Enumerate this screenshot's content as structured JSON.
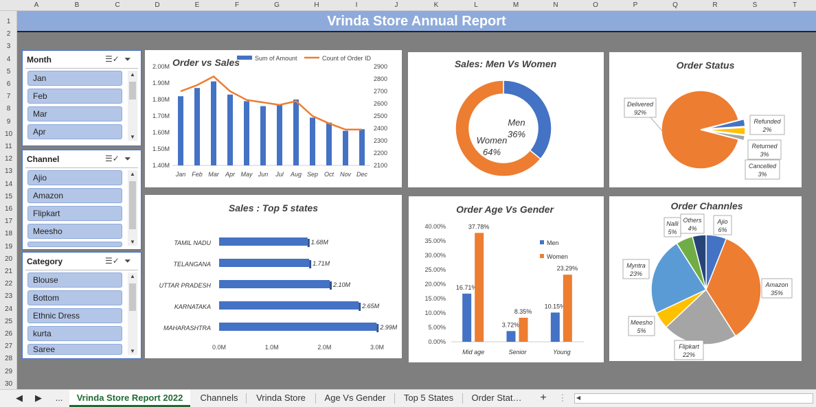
{
  "columns": [
    "A",
    "B",
    "C",
    "D",
    "E",
    "F",
    "G",
    "H",
    "I",
    "J",
    "K",
    "L",
    "M",
    "N",
    "O",
    "P",
    "Q",
    "R",
    "S",
    "T"
  ],
  "rows": [
    "1",
    "2",
    "3",
    "4",
    "5",
    "6",
    "7",
    "8",
    "9",
    "10",
    "11",
    "12",
    "13",
    "14",
    "15",
    "16",
    "17",
    "18",
    "19",
    "20",
    "21",
    "22",
    "23",
    "24",
    "25",
    "26",
    "27",
    "28",
    "29",
    "30"
  ],
  "title": "Vrinda Store Annual Report",
  "slicers": {
    "month": {
      "label": "Month",
      "items": [
        "Jan",
        "Feb",
        "Mar",
        "Apr"
      ]
    },
    "channel": {
      "label": "Channel",
      "items": [
        "Ajio",
        "Amazon",
        "Flipkart",
        "Meesho"
      ]
    },
    "category": {
      "label": "Category",
      "items": [
        "Blouse",
        "Bottom",
        "Ethnic Dress",
        "kurta",
        "Saree"
      ]
    }
  },
  "tabs": {
    "first": "Vrinda Store Report 2022",
    "t2": "Channels",
    "t3": "Vrinda Store",
    "t4": "Age Vs Gender",
    "t5": "Top 5 States",
    "t6": "Order Stat…",
    "ellipsis": "...",
    "add": "+"
  },
  "colors": {
    "blue": "#4472c4",
    "orange": "#ed7d31",
    "gray": "#a5a5a5",
    "yellow": "#ffc000",
    "lightblue": "#5b9bd5",
    "green": "#70ad47",
    "navy": "#264478"
  },
  "chart_data": [
    {
      "type": "bar",
      "title": "Order vs Sales",
      "categories": [
        "Jan",
        "Feb",
        "Mar",
        "Apr",
        "May",
        "Jun",
        "Jul",
        "Aug",
        "Sep",
        "Oct",
        "Nov",
        "Dec"
      ],
      "series": [
        {
          "name": "Sum of Amount",
          "values": [
            1.82,
            1.87,
            1.91,
            1.83,
            1.79,
            1.76,
            1.77,
            1.8,
            1.69,
            1.66,
            1.61,
            1.62
          ]
        },
        {
          "name": "Count of Order ID",
          "values": [
            2700,
            2750,
            2820,
            2700,
            2630,
            2610,
            2590,
            2620,
            2500,
            2440,
            2390,
            2390
          ]
        }
      ],
      "y_ticks": [
        "2.00M",
        "1.90M",
        "1.80M",
        "1.70M",
        "1.60M",
        "1.50M",
        "1.40M"
      ],
      "y2_ticks": [
        "2900",
        "2800",
        "2700",
        "2600",
        "2500",
        "2400",
        "2300",
        "2200",
        "2100"
      ],
      "ylim": [
        1.4,
        2.0
      ],
      "y2lim": [
        2100,
        2900
      ]
    },
    {
      "type": "pie",
      "title": "Sales: Men Vs Women",
      "labels": [
        "Men",
        "Women"
      ],
      "values": [
        36,
        64
      ],
      "value_labels": [
        "36%",
        "64%"
      ]
    },
    {
      "type": "pie",
      "title": "Order Status",
      "labels": [
        "Delivered",
        "Refunded",
        "Returned",
        "Cancelled"
      ],
      "values": [
        92,
        2,
        3,
        3
      ],
      "value_labels": [
        "92%",
        "2%",
        "3%",
        "3%"
      ]
    },
    {
      "type": "bar",
      "title": "Sales : Top 5 states",
      "categories": [
        "TAMIL NADU",
        "TELANGANA",
        "UTTAR PRADESH",
        "KARNATAKA",
        "MAHARASHTRA"
      ],
      "values": [
        1.68,
        1.71,
        2.1,
        2.65,
        2.99
      ],
      "value_labels": [
        "1.68M",
        "1.71M",
        "2.10M",
        "2.65M",
        "2.99M"
      ],
      "x_ticks": [
        "0.0M",
        "1.0M",
        "2.0M",
        "3.0M"
      ],
      "xlim": [
        0,
        3
      ]
    },
    {
      "type": "bar",
      "title": "Order Age Vs Gender",
      "categories": [
        "Mid age",
        "Senior",
        "Young"
      ],
      "series": [
        {
          "name": "Men",
          "values": [
            16.71,
            3.72,
            10.15
          ],
          "labels": [
            "16.71%",
            "3.72%",
            "10.15%"
          ]
        },
        {
          "name": "Women",
          "values": [
            37.78,
            8.35,
            23.29
          ],
          "labels": [
            "37.78%",
            "8.35%",
            "23.29%"
          ]
        }
      ],
      "y_ticks": [
        "40.00%",
        "35.00%",
        "30.00%",
        "25.00%",
        "20.00%",
        "15.00%",
        "10.00%",
        "5.00%",
        "0.00%"
      ],
      "ylim": [
        0,
        40
      ]
    },
    {
      "type": "pie",
      "title": "Order Channles",
      "labels": [
        "Ajio",
        "Amazon",
        "Flipkart",
        "Meesho",
        "Myntra",
        "Nalli",
        "Others"
      ],
      "values": [
        6,
        35,
        22,
        5,
        23,
        5,
        4
      ],
      "value_labels": [
        "6%",
        "35%",
        "22%",
        "5%",
        "23%",
        "5%",
        "4%"
      ]
    }
  ]
}
